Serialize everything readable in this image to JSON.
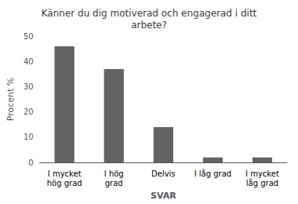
{
  "chart_data": {
    "type": "bar",
    "title": "Känner du dig motiverad och engagerad i ditt\narbete?",
    "categories": [
      "I mycket\nhög grad",
      "I hög\ngrad",
      "Delvis",
      "I låg grad",
      "I mycket\nlåg grad"
    ],
    "values": [
      46,
      37,
      14,
      2,
      2
    ],
    "color": "#636363",
    "xlabel": "SVAR",
    "ylabel": "Procent %",
    "ylim": [
      0,
      50
    ],
    "yticks": [
      0,
      10,
      20,
      30,
      40,
      50
    ],
    "grid": false
  }
}
